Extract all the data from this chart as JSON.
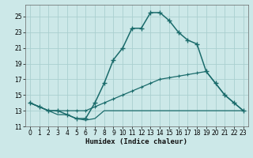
{
  "xlabel": "Humidex (Indice chaleur)",
  "background_color": "#cce8e8",
  "grid_color": "#aacfcf",
  "line_color": "#1a6b6b",
  "xlim": [
    -0.5,
    23.5
  ],
  "ylim": [
    11,
    26.5
  ],
  "xticks": [
    0,
    1,
    2,
    3,
    4,
    5,
    6,
    7,
    8,
    9,
    10,
    11,
    12,
    13,
    14,
    15,
    16,
    17,
    18,
    19,
    20,
    21,
    22,
    23
  ],
  "yticks": [
    11,
    13,
    15,
    17,
    19,
    21,
    23,
    25
  ],
  "series1_x": [
    0,
    1,
    2,
    3,
    4,
    5,
    6,
    7,
    8,
    9,
    10,
    11,
    12,
    13,
    14,
    15,
    16,
    17,
    18,
    19,
    20,
    21,
    22,
    23
  ],
  "series1_y": [
    14.0,
    13.5,
    13.0,
    13.0,
    12.5,
    12.0,
    12.0,
    14.0,
    16.5,
    19.5,
    21.0,
    23.5,
    23.5,
    25.5,
    25.5,
    24.5,
    23.0,
    22.0,
    21.5,
    18.0,
    16.5,
    15.0,
    14.0,
    13.0
  ],
  "series2_x": [
    0,
    1,
    2,
    3,
    4,
    5,
    6,
    7,
    8,
    9,
    10,
    11,
    12,
    13,
    14,
    15,
    16,
    17,
    18,
    19,
    20,
    21,
    22,
    23
  ],
  "series2_y": [
    14.0,
    13.5,
    13.0,
    13.0,
    13.0,
    13.0,
    13.0,
    13.5,
    14.0,
    14.5,
    15.0,
    15.5,
    16.0,
    16.5,
    17.0,
    17.2,
    17.4,
    17.6,
    17.8,
    18.0,
    16.5,
    15.0,
    14.0,
    13.0
  ],
  "series3_x": [
    0,
    1,
    2,
    3,
    4,
    5,
    6,
    7,
    8,
    9,
    10,
    11,
    12,
    13,
    14,
    15,
    16,
    17,
    18,
    19,
    20,
    21,
    22,
    23
  ],
  "series3_y": [
    14.0,
    13.5,
    13.0,
    12.5,
    12.5,
    12.0,
    11.8,
    12.0,
    13.0,
    13.0,
    13.0,
    13.0,
    13.0,
    13.0,
    13.0,
    13.0,
    13.0,
    13.0,
    13.0,
    13.0,
    13.0,
    13.0,
    13.0,
    13.0
  ]
}
